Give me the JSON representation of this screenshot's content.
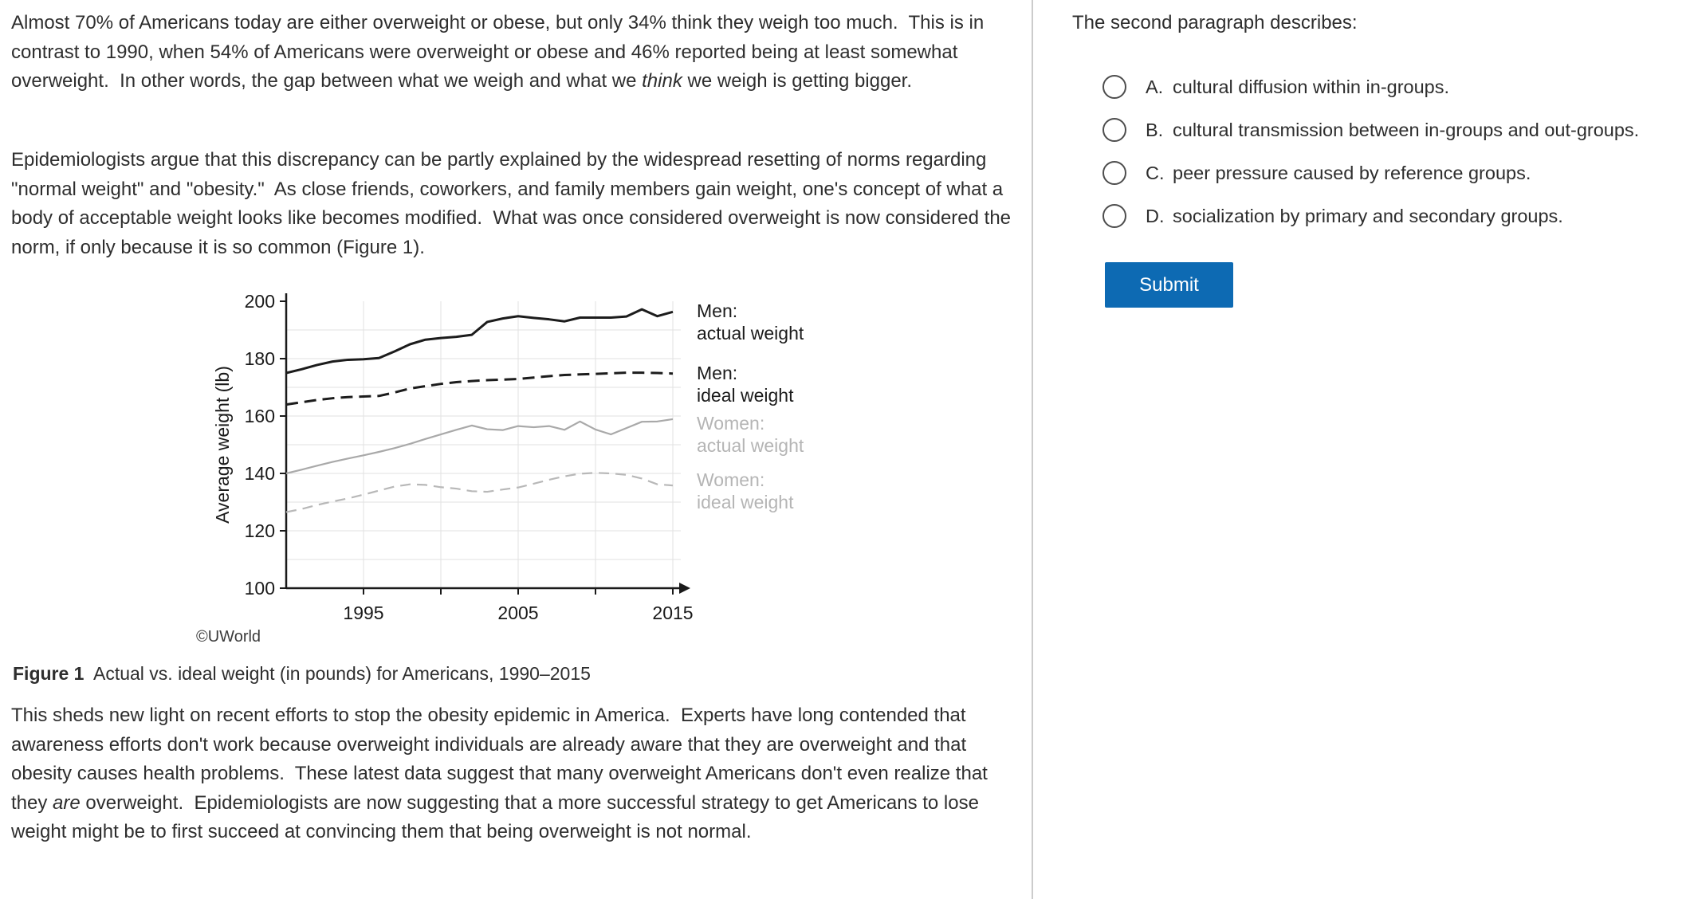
{
  "passage": {
    "paragraph1": [
      {
        "t": "Almost 70% of Americans today are either overweight or obese, but only 34% think they weigh too much.  This is in contrast to 1990, when 54% of Americans were overweight or obese and 46% reported being at least somewhat overweight.  In other words, the gap between what we weigh and what we "
      },
      {
        "t": "think",
        "i": true
      },
      {
        "t": " we weigh is getting bigger."
      }
    ],
    "paragraph2": [
      {
        "t": "Epidemiologists argue that this discrepancy can be partly explained by the widespread resetting of norms regarding \"normal weight\" and \"obesity.\"  As close friends, coworkers, and family members gain weight, one's concept of what a body of acceptable weight looks like becomes modified.  What was once considered overweight is now considered the norm, if only because it is so common (Figure 1)."
      }
    ],
    "figure_caption": [
      {
        "t": "Figure 1",
        "b": true
      },
      {
        "t": "  Actual vs. ideal weight (in pounds) for Americans, 1990–2015"
      }
    ],
    "paragraph3": [
      {
        "t": "This sheds new light on recent efforts to stop the obesity epidemic in America.  Experts have long contended that awareness efforts don't work because overweight individuals are already aware that they are overweight and that obesity causes health problems.  These latest data suggest that many overweight Americans don't even realize that they "
      },
      {
        "t": "are",
        "i": true
      },
      {
        "t": " overweight.  Epidemiologists are now suggesting that a more successful strategy to get Americans to lose weight might be to first succeed at convincing them that being overweight is not normal."
      }
    ],
    "copyright": "©UWorld"
  },
  "chart_data": {
    "type": "line",
    "ylabel": "Average weight (lb)",
    "xlabel": "",
    "ylim": [
      100,
      200
    ],
    "xlim": [
      1990,
      2015
    ],
    "y_ticks": [
      100,
      120,
      140,
      160,
      180,
      200
    ],
    "y_gridlines": [
      110,
      120,
      130,
      140,
      150,
      160,
      170,
      180,
      190
    ],
    "x_gridlines": [
      1995,
      2000,
      2005,
      2010,
      2015
    ],
    "x_tick_labels": [
      1995,
      2005,
      2015
    ],
    "grid_color": "#e2e2e2",
    "axis_color": "#1a1a1a",
    "legend_position": "right",
    "x": [
      1990,
      1991,
      1992,
      1993,
      1994,
      1995,
      1996,
      1997,
      1998,
      1999,
      2000,
      2001,
      2002,
      2003,
      2004,
      2005,
      2006,
      2007,
      2008,
      2009,
      2010,
      2011,
      2012,
      2013,
      2014,
      2015
    ],
    "series": [
      {
        "id": "men-actual",
        "legend": [
          "Men:",
          "actual weight"
        ],
        "color": "#1c1c1c",
        "legend_color": "#1c1c1c",
        "dash": "",
        "width": 3,
        "values": [
          175,
          176.3,
          177.8,
          179,
          179.6,
          179.8,
          180.2,
          182.5,
          185,
          186.6,
          187.2,
          187.6,
          188.3,
          192.8,
          194,
          194.8,
          194.2,
          193.7,
          193,
          194.3,
          194.3,
          194.3,
          194.7,
          197.2,
          194.8,
          196.3
        ]
      },
      {
        "id": "men-ideal",
        "legend": [
          "Men:",
          "ideal weight"
        ],
        "color": "#1c1c1c",
        "legend_color": "#1c1c1c",
        "dash": "15 8",
        "width": 3,
        "values": [
          164,
          164.8,
          165.6,
          166.2,
          166.6,
          166.8,
          167,
          168.2,
          169.6,
          170.4,
          171.2,
          171.8,
          172.2,
          172.5,
          172.7,
          172.9,
          173.4,
          173.9,
          174.3,
          174.5,
          174.7,
          174.9,
          175.1,
          175.1,
          175,
          174.8
        ]
      },
      {
        "id": "women-actual",
        "legend": [
          "Women:",
          "actual weight"
        ],
        "color": "#a9a9a9",
        "legend_color": "#b5b5b5",
        "dash": "",
        "width": 2.2,
        "values": [
          140,
          141.3,
          142.7,
          144,
          145.2,
          146.3,
          147.5,
          148.8,
          150.3,
          152,
          153.6,
          155.2,
          156.7,
          155.4,
          155.1,
          156.5,
          156.1,
          156.5,
          155.2,
          158.1,
          155.3,
          153.6,
          155.8,
          158,
          158.1,
          158.9
        ]
      },
      {
        "id": "women-ideal",
        "legend": [
          "Women:",
          "ideal weight"
        ],
        "color": "#b8b8b8",
        "legend_color": "#b5b5b5",
        "dash": "13 8",
        "width": 2.2,
        "values": [
          126.5,
          127.6,
          129,
          130.2,
          131.3,
          132.6,
          134,
          135.4,
          136.2,
          136,
          135.2,
          134.7,
          133.8,
          133.6,
          134.4,
          135.1,
          136.4,
          137.8,
          139,
          139.9,
          140.2,
          140,
          139.5,
          138.2,
          136.2,
          135.8
        ]
      }
    ]
  },
  "question": {
    "prompt": "The second paragraph describes:",
    "options": [
      {
        "letter": "A.",
        "text": "cultural diffusion within in-groups."
      },
      {
        "letter": "B.",
        "text": "cultural transmission between in-groups and out-groups."
      },
      {
        "letter": "C.",
        "text": "peer pressure caused by reference groups."
      },
      {
        "letter": "D.",
        "text": "socialization by primary and secondary groups."
      }
    ],
    "submit_label": "Submit"
  },
  "colors": {
    "submit_blue": "#0d6ab3",
    "divider_gray": "#cccccc",
    "text": "#2e2e2e"
  }
}
